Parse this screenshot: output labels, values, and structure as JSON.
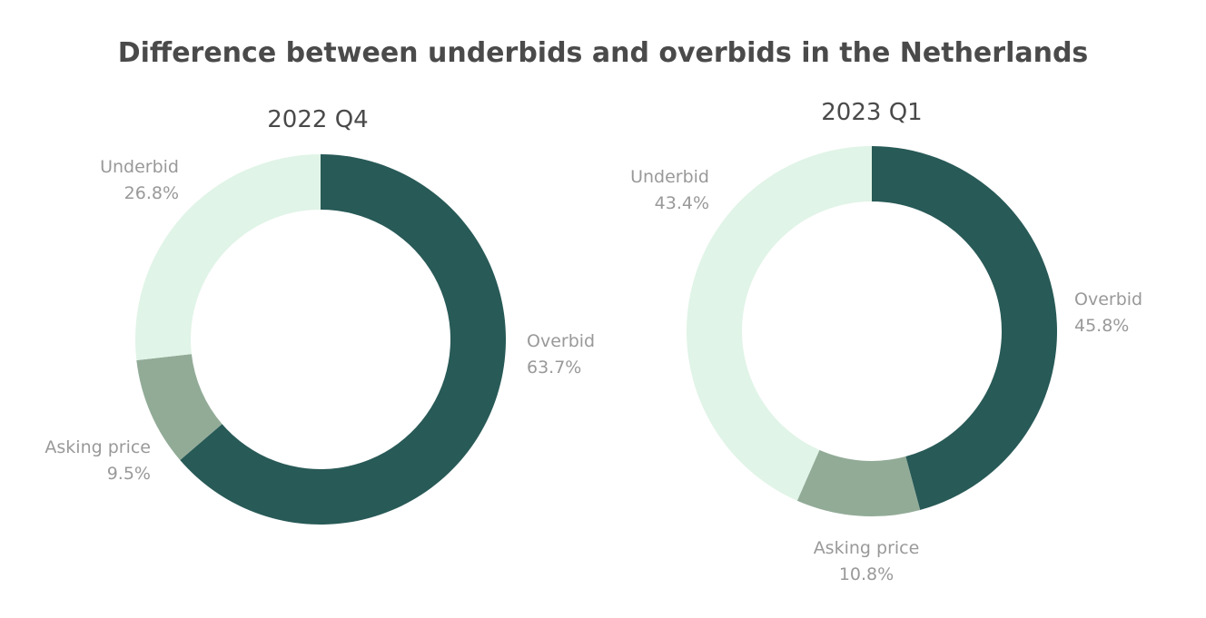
{
  "chart_data": {
    "type": "pie",
    "title": "Difference between underbids and overbids in the Netherlands",
    "charts": [
      {
        "subtitle": "2022 Q4",
        "slices": [
          {
            "name": "Overbid",
            "value": 63.7,
            "value_label": "63.7%",
            "color": "#285a57"
          },
          {
            "name": "Asking price",
            "value": 9.5,
            "value_label": "9.5%",
            "color": "#92ab97"
          },
          {
            "name": "Underbid",
            "value": 26.8,
            "value_label": "26.8%",
            "color": "#e0f4e7"
          }
        ]
      },
      {
        "subtitle": "2023 Q1",
        "slices": [
          {
            "name": "Overbid",
            "value": 45.8,
            "value_label": "45.8%",
            "color": "#285a57"
          },
          {
            "name": "Asking price",
            "value": 10.8,
            "value_label": "10.8%",
            "color": "#92ab97"
          },
          {
            "name": "Underbid",
            "value": 43.4,
            "value_label": "43.4%",
            "color": "#e0f4e7"
          }
        ]
      }
    ]
  }
}
